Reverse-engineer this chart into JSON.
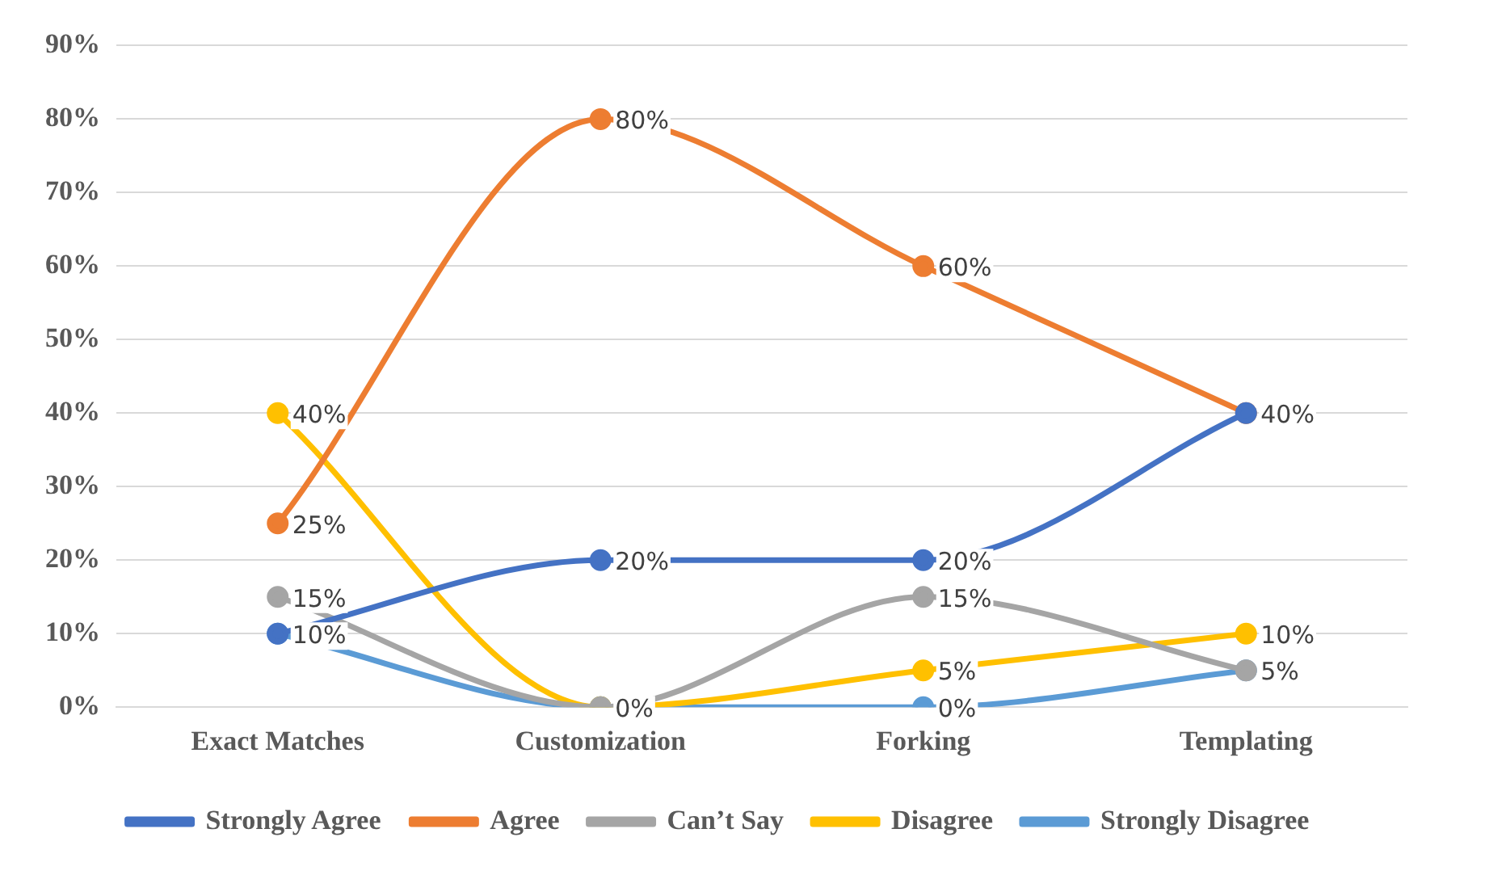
{
  "chart_data": {
    "type": "line",
    "categories": [
      "Exact Matches",
      "Customization",
      "Forking",
      "Templating"
    ],
    "series": [
      {
        "name": "Strongly Agree",
        "color": "#4472c4",
        "values": [
          10,
          20,
          20,
          40
        ],
        "value_labels": [
          null,
          "20%",
          "20%",
          null
        ]
      },
      {
        "name": "Agree",
        "color": "#ed7d31",
        "values": [
          25,
          80,
          60,
          40
        ],
        "value_labels": [
          "25%",
          "80%",
          "60%",
          "40%"
        ]
      },
      {
        "name": "Can’t Say",
        "color": "#a5a5a5",
        "values": [
          15,
          0,
          15,
          5
        ],
        "value_labels": [
          "15%",
          null,
          "15%",
          null
        ]
      },
      {
        "name": "Disagree",
        "color": "#ffc000",
        "values": [
          40,
          0,
          5,
          10
        ],
        "value_labels": [
          "40%",
          null,
          "5%",
          "10%"
        ]
      },
      {
        "name": "Strongly Disagree",
        "color": "#5b9bd5",
        "values": [
          10,
          0,
          0,
          5
        ],
        "value_labels": [
          "10%",
          "0%",
          "0%",
          "5%"
        ]
      }
    ],
    "ylim": [
      0,
      90
    ],
    "yticks": [
      {
        "value": 0,
        "label": "0%"
      },
      {
        "value": 10,
        "label": "10%"
      },
      {
        "value": 20,
        "label": "20%"
      },
      {
        "value": 30,
        "label": "30%"
      },
      {
        "value": 40,
        "label": "40%"
      },
      {
        "value": 50,
        "label": "50%"
      },
      {
        "value": 60,
        "label": "60%"
      },
      {
        "value": 70,
        "label": "70%"
      },
      {
        "value": 80,
        "label": "80%"
      },
      {
        "value": 90,
        "label": "90%"
      }
    ],
    "grid": "y",
    "legend": "bottom",
    "marker": "circle",
    "line_style": "solid"
  }
}
